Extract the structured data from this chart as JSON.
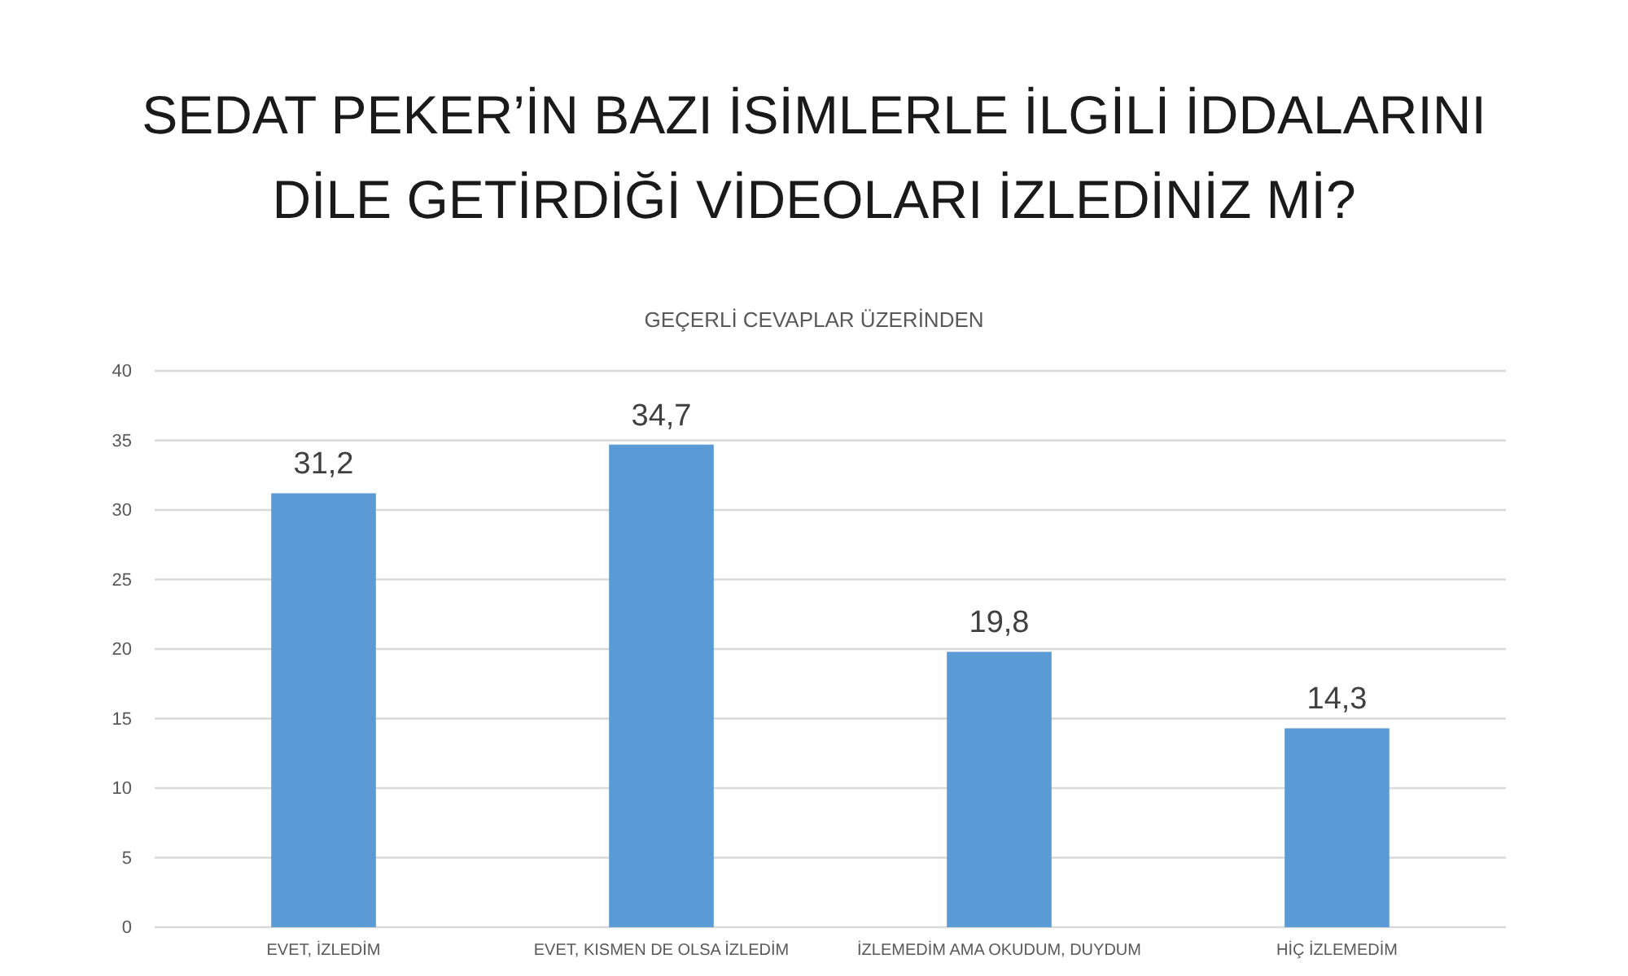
{
  "chart_data": {
    "type": "bar",
    "title": "SEDAT PEKER’İN BAZI İSİMLERLE İLGİLİ İDDALARINI DİLE GETİRDİĞİ VİDEOLARI İZLEDİNİZ Mİ?",
    "subtitle": "GEÇERLİ CEVAPLAR ÜZERİNDEN",
    "categories": [
      "EVET, İZLEDİM",
      "EVET, KISMEN DE OLSA İZLEDİM",
      "İZLEMEDİM AMA OKUDUM, DUYDUM",
      "HİÇ İZLEMEDİM"
    ],
    "values": [
      31.2,
      34.7,
      19.8,
      14.3
    ],
    "value_labels": [
      "31,2",
      "34,7",
      "19,8",
      "14,3"
    ],
    "color": "#5b9bd5",
    "ylim": [
      0,
      40
    ],
    "yticks": [
      0,
      5,
      10,
      15,
      20,
      25,
      30,
      35,
      40
    ],
    "grid": "y"
  }
}
